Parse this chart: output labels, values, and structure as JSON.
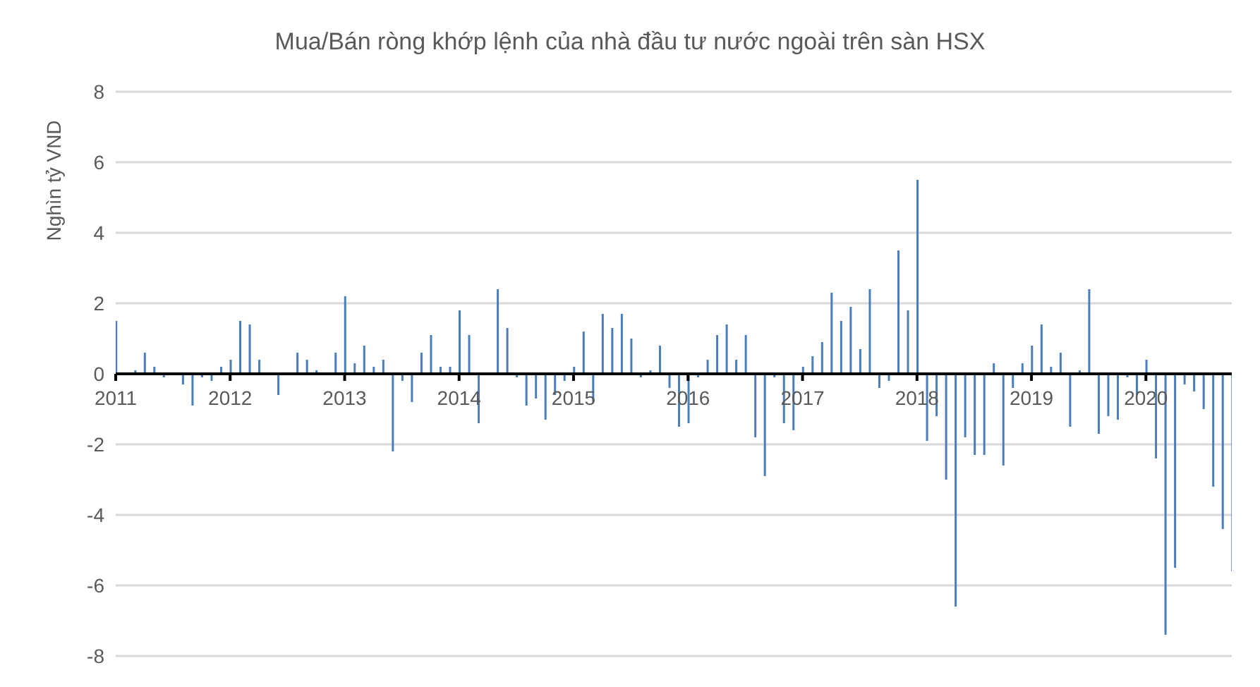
{
  "chart_data": {
    "type": "bar",
    "title": "Mua/Bán ròng khớp lệnh của nhà đầu tư nước ngoài trên sàn HSX",
    "ylabel": "Nghìn tỷ VND",
    "x": [
      "2011-01",
      "2011-02",
      "2011-03",
      "2011-04",
      "2011-05",
      "2011-06",
      "2011-07",
      "2011-08",
      "2011-09",
      "2011-10",
      "2011-11",
      "2011-12",
      "2012-01",
      "2012-02",
      "2012-03",
      "2012-04",
      "2012-05",
      "2012-06",
      "2012-07",
      "2012-08",
      "2012-09",
      "2012-10",
      "2012-11",
      "2012-12",
      "2013-01",
      "2013-02",
      "2013-03",
      "2013-04",
      "2013-05",
      "2013-06",
      "2013-07",
      "2013-08",
      "2013-09",
      "2013-10",
      "2013-11",
      "2013-12",
      "2014-01",
      "2014-02",
      "2014-03",
      "2014-04",
      "2014-05",
      "2014-06",
      "2014-07",
      "2014-08",
      "2014-09",
      "2014-10",
      "2014-11",
      "2014-12",
      "2015-01",
      "2015-02",
      "2015-03",
      "2015-04",
      "2015-05",
      "2015-06",
      "2015-07",
      "2015-08",
      "2015-09",
      "2015-10",
      "2015-11",
      "2015-12",
      "2016-01",
      "2016-02",
      "2016-03",
      "2016-04",
      "2016-05",
      "2016-06",
      "2016-07",
      "2016-08",
      "2016-09",
      "2016-10",
      "2016-11",
      "2016-12",
      "2017-01",
      "2017-02",
      "2017-03",
      "2017-04",
      "2017-05",
      "2017-06",
      "2017-07",
      "2017-08",
      "2017-09",
      "2017-10",
      "2017-11",
      "2017-12",
      "2018-01",
      "2018-02",
      "2018-03",
      "2018-04",
      "2018-05",
      "2018-06",
      "2018-07",
      "2018-08",
      "2018-09",
      "2018-10",
      "2018-11",
      "2018-12",
      "2019-01",
      "2019-02",
      "2019-03",
      "2019-04",
      "2019-05",
      "2019-06",
      "2019-07",
      "2019-08",
      "2019-09",
      "2019-10",
      "2019-11",
      "2019-12",
      "2020-01",
      "2020-02",
      "2020-03",
      "2020-04",
      "2020-05",
      "2020-06",
      "2020-07",
      "2020-08",
      "2020-09",
      "2020-10"
    ],
    "values": [
      1.5,
      null,
      0.1,
      0.6,
      0.2,
      -0.1,
      null,
      -0.3,
      -0.9,
      -0.1,
      -0.2,
      0.2,
      0.4,
      1.5,
      1.4,
      0.4,
      null,
      -0.6,
      null,
      0.6,
      0.4,
      0.1,
      null,
      0.6,
      2.2,
      0.3,
      0.8,
      0.2,
      0.4,
      -2.2,
      -0.2,
      -0.8,
      0.6,
      1.1,
      0.2,
      0.2,
      1.8,
      1.1,
      -1.4,
      null,
      2.4,
      1.3,
      -0.1,
      -0.9,
      -0.7,
      -1.3,
      -0.6,
      -0.2,
      0.2,
      1.2,
      -0.8,
      1.7,
      1.3,
      1.7,
      1.0,
      -0.1,
      0.1,
      0.8,
      -0.4,
      -1.5,
      -1.4,
      -0.1,
      0.4,
      1.1,
      1.4,
      0.4,
      1.1,
      -1.8,
      -2.9,
      -0.1,
      -1.4,
      -1.6,
      0.2,
      0.5,
      0.9,
      2.3,
      1.5,
      1.9,
      0.7,
      2.4,
      -0.4,
      -0.2,
      3.5,
      1.8,
      5.5,
      -1.9,
      -1.2,
      -3.0,
      -6.6,
      -1.8,
      -2.3,
      -2.3,
      0.3,
      -2.6,
      -0.4,
      0.3,
      0.8,
      1.4,
      0.2,
      0.6,
      -1.5,
      0.1,
      2.4,
      -1.7,
      -1.2,
      -1.3,
      -0.1,
      -0.6,
      0.4,
      -2.4,
      -7.4,
      -5.5,
      -0.3,
      -0.5,
      -1.0,
      -3.2,
      -4.4,
      -5.6
    ],
    "color": "#4a7ebb",
    "xlim": [
      "2011-01",
      "2020-10"
    ],
    "xticks": [
      {
        "value": "2011-01",
        "label": "2011"
      },
      {
        "value": "2012-01",
        "label": "2012"
      },
      {
        "value": "2013-01",
        "label": "2013"
      },
      {
        "value": "2014-01",
        "label": "2014"
      },
      {
        "value": "2015-01",
        "label": "2015"
      },
      {
        "value": "2016-01",
        "label": "2016"
      },
      {
        "value": "2017-01",
        "label": "2017"
      },
      {
        "value": "2018-01",
        "label": "2018"
      },
      {
        "value": "2019-01",
        "label": "2019"
      },
      {
        "value": "2020-01",
        "label": "2020"
      }
    ],
    "ylim": [
      -8,
      8
    ],
    "yticks": [
      -8,
      -6,
      -4,
      -2,
      0,
      2,
      4,
      6,
      8
    ],
    "grid": "y"
  }
}
